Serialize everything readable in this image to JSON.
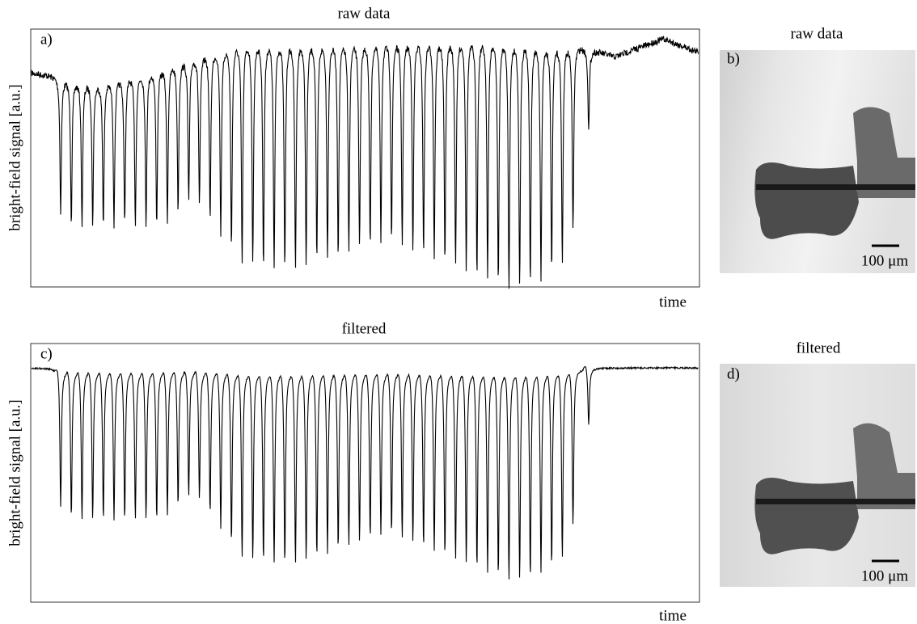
{
  "panels": [
    {
      "label": "a)",
      "title": "raw data",
      "y_label": "bright-field signal [a.u.]",
      "x_label": "time"
    },
    {
      "label": "c)",
      "title": "filtered",
      "y_label": "bright-field signal [a.u.]",
      "x_label": "time"
    }
  ],
  "images": [
    {
      "label": "b)",
      "title": "raw data",
      "scale_bar": "100 μm"
    },
    {
      "label": "d)",
      "title": "filtered",
      "scale_bar": "100 μm"
    }
  ]
}
